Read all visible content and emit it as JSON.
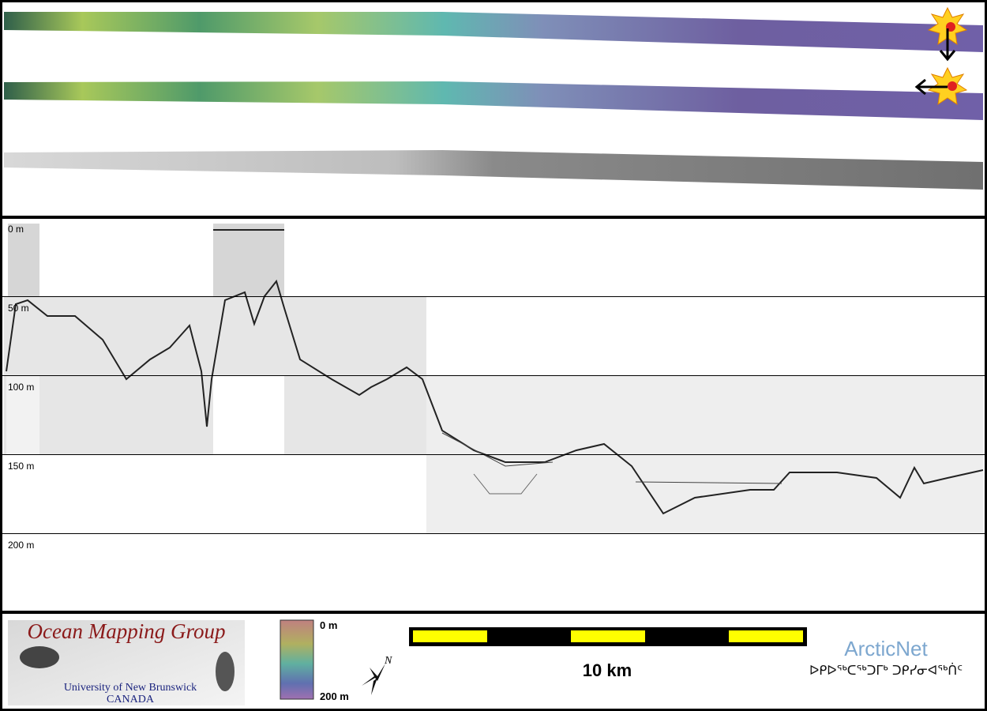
{
  "profile": {
    "depth_labels": [
      "0 m",
      "50 m",
      "100 m",
      "150 m",
      "200 m"
    ]
  },
  "footer": {
    "logo": {
      "title": "Ocean Mapping Group",
      "university": "University of New Brunswick",
      "country": "CANADA"
    },
    "colorbar": {
      "top_label": "0 m",
      "bottom_label": "200 m"
    },
    "compass": "N",
    "scale_bar": "10 km",
    "partner": {
      "name": "ArcticNet",
      "syllabics": "ᐅᑭᐅᖅᑕᖅᑐᒥᒃ ᑐᑭᓯᓂᐊᖅᑏᑦ"
    }
  }
}
